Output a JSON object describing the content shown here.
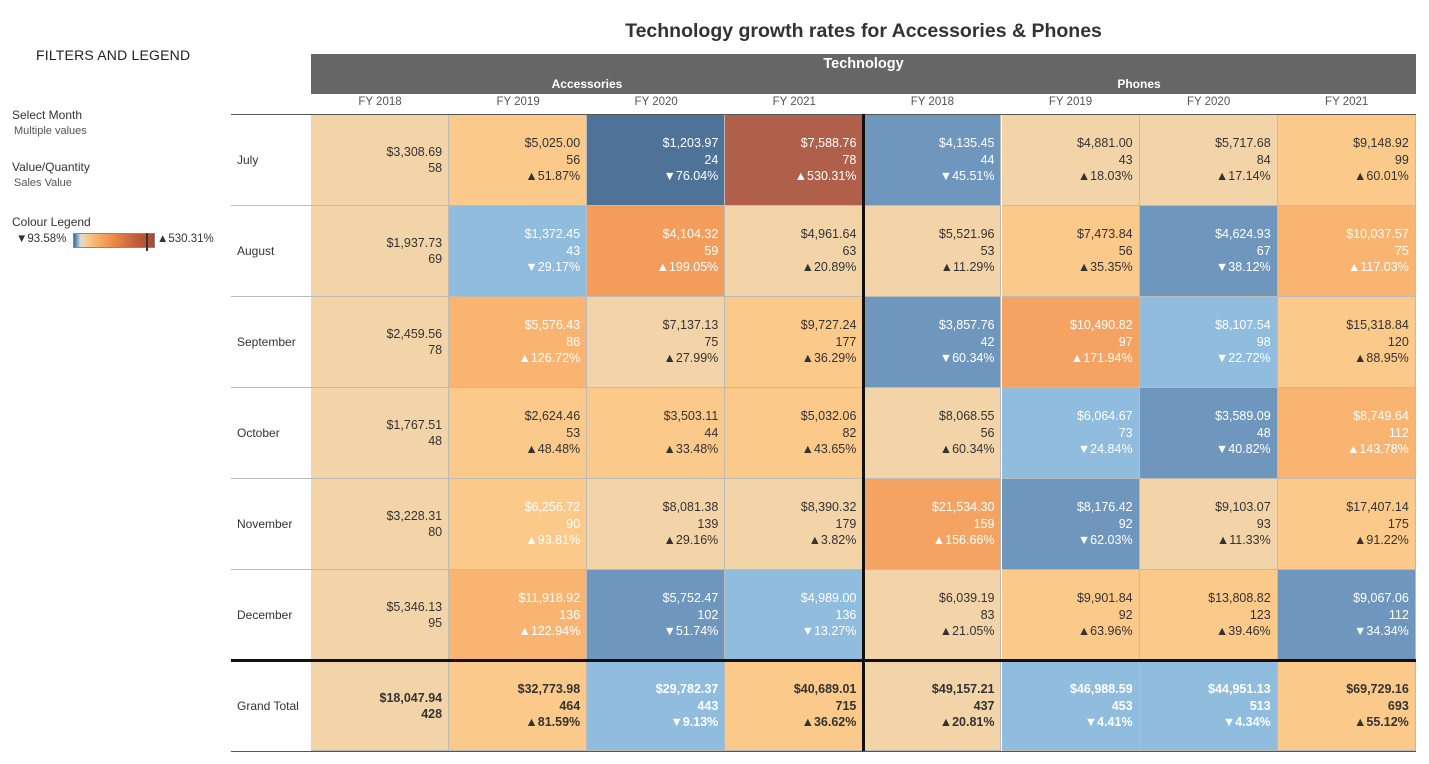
{
  "filters_panel": {
    "heading": "FILTERS AND LEGEND",
    "month_label": "Select Month",
    "month_value": "Multiple values",
    "measure_label": "Value/Quantity",
    "measure_value": "Sales Value",
    "legend_label": "Colour Legend",
    "legend_min": "▼93.58%",
    "legend_max": "▲530.31%"
  },
  "chart_data": {
    "type": "table",
    "title": "Technology growth rates for Accessories & Phones",
    "category": "Technology",
    "subcategories": [
      "Accessories",
      "Phones"
    ],
    "years": [
      "FY 2018",
      "FY 2019",
      "FY 2020",
      "FY 2021"
    ],
    "columns": [
      {
        "sub": "Accessories",
        "year": "FY 2018"
      },
      {
        "sub": "Accessories",
        "year": "FY 2019"
      },
      {
        "sub": "Accessories",
        "year": "FY 2020"
      },
      {
        "sub": "Accessories",
        "year": "FY 2021"
      },
      {
        "sub": "Phones",
        "year": "FY 2018"
      },
      {
        "sub": "Phones",
        "year": "FY 2019"
      },
      {
        "sub": "Phones",
        "year": "FY 2020"
      },
      {
        "sub": "Phones",
        "year": "FY 2021"
      }
    ],
    "rows": [
      {
        "label": "July",
        "cells": [
          {
            "value": "$3,308.69",
            "qty": "58",
            "growth": "",
            "color": "#f3d4a8",
            "text": "#333"
          },
          {
            "value": "$5,025.00",
            "qty": "56",
            "growth": "▲51.87%",
            "color": "#fbc98a",
            "text": "#333"
          },
          {
            "value": "$1,203.97",
            "qty": "24",
            "growth": "▼76.04%",
            "color": "#4f7298",
            "text": "#fff"
          },
          {
            "value": "$7,588.76",
            "qty": "78",
            "growth": "▲530.31%",
            "color": "#b0604a",
            "text": "#fff"
          },
          {
            "value": "$4,135.45",
            "qty": "44",
            "growth": "▼45.51%",
            "color": "#6f97be",
            "text": "#fff"
          },
          {
            "value": "$4,881.00",
            "qty": "43",
            "growth": "▲18.03%",
            "color": "#f3d4a8",
            "text": "#333"
          },
          {
            "value": "$5,717.68",
            "qty": "84",
            "growth": "▲17.14%",
            "color": "#f3d4a8",
            "text": "#333"
          },
          {
            "value": "$9,148.92",
            "qty": "99",
            "growth": "▲60.01%",
            "color": "#fbc98a",
            "text": "#333"
          }
        ]
      },
      {
        "label": "August",
        "cells": [
          {
            "value": "$1,937.73",
            "qty": "69",
            "growth": "",
            "color": "#f3d4a8",
            "text": "#333"
          },
          {
            "value": "$1,372.45",
            "qty": "43",
            "growth": "▼29.17%",
            "color": "#90bcde",
            "text": "#fff"
          },
          {
            "value": "$4,104.32",
            "qty": "59",
            "growth": "▲199.05%",
            "color": "#f49c5a",
            "text": "#fff"
          },
          {
            "value": "$4,961.64",
            "qty": "63",
            "growth": "▲20.89%",
            "color": "#f3d4a8",
            "text": "#333"
          },
          {
            "value": "$5,521.96",
            "qty": "53",
            "growth": "▲11.29%",
            "color": "#f3d4a8",
            "text": "#333"
          },
          {
            "value": "$7,473.84",
            "qty": "56",
            "growth": "▲35.35%",
            "color": "#fbc98a",
            "text": "#333"
          },
          {
            "value": "$4,624.93",
            "qty": "67",
            "growth": "▼38.12%",
            "color": "#6f97be",
            "text": "#fff"
          },
          {
            "value": "$10,037.57",
            "qty": "75",
            "growth": "▲117.03%",
            "color": "#f8b470",
            "text": "#fff"
          }
        ]
      },
      {
        "label": "September",
        "cells": [
          {
            "value": "$2,459.56",
            "qty": "78",
            "growth": "",
            "color": "#f3d4a8",
            "text": "#333"
          },
          {
            "value": "$5,576.43",
            "qty": "86",
            "growth": "▲126.72%",
            "color": "#f8b470",
            "text": "#fff"
          },
          {
            "value": "$7,137.13",
            "qty": "75",
            "growth": "▲27.99%",
            "color": "#f3d4a8",
            "text": "#333"
          },
          {
            "value": "$9,727.24",
            "qty": "177",
            "growth": "▲36.29%",
            "color": "#fbc98a",
            "text": "#333"
          },
          {
            "value": "$3,857.76",
            "qty": "42",
            "growth": "▼60.34%",
            "color": "#6f97be",
            "text": "#fff"
          },
          {
            "value": "$10,490.82",
            "qty": "97",
            "growth": "▲171.94%",
            "color": "#f4a362",
            "text": "#fff"
          },
          {
            "value": "$8,107.54",
            "qty": "98",
            "growth": "▼22.72%",
            "color": "#90bcde",
            "text": "#fff"
          },
          {
            "value": "$15,318.84",
            "qty": "120",
            "growth": "▲88.95%",
            "color": "#fbc98a",
            "text": "#333"
          }
        ]
      },
      {
        "label": "October",
        "cells": [
          {
            "value": "$1,767.51",
            "qty": "48",
            "growth": "",
            "color": "#f3d4a8",
            "text": "#333"
          },
          {
            "value": "$2,624.46",
            "qty": "53",
            "growth": "▲48.48%",
            "color": "#fbc98a",
            "text": "#333"
          },
          {
            "value": "$3,503.11",
            "qty": "44",
            "growth": "▲33.48%",
            "color": "#fbc98a",
            "text": "#333"
          },
          {
            "value": "$5,032.06",
            "qty": "82",
            "growth": "▲43.65%",
            "color": "#fbc98a",
            "text": "#333"
          },
          {
            "value": "$8,068.55",
            "qty": "56",
            "growth": "▲60.34%",
            "color": "#f3d4a8",
            "text": "#333"
          },
          {
            "value": "$6,064.67",
            "qty": "73",
            "growth": "▼24.84%",
            "color": "#90bcde",
            "text": "#fff"
          },
          {
            "value": "$3,589.09",
            "qty": "48",
            "growth": "▼40.82%",
            "color": "#6f97be",
            "text": "#fff"
          },
          {
            "value": "$8,749.64",
            "qty": "112",
            "growth": "▲143.78%",
            "color": "#f8b470",
            "text": "#fff"
          }
        ]
      },
      {
        "label": "November",
        "cells": [
          {
            "value": "$3,228.31",
            "qty": "80",
            "growth": "",
            "color": "#f3d4a8",
            "text": "#333"
          },
          {
            "value": "$6,256.72",
            "qty": "90",
            "growth": "▲93.81%",
            "color": "#fbc98a",
            "text": "#fff"
          },
          {
            "value": "$8,081.38",
            "qty": "139",
            "growth": "▲29.16%",
            "color": "#f3d4a8",
            "text": "#333"
          },
          {
            "value": "$8,390.32",
            "qty": "179",
            "growth": "▲3.82%",
            "color": "#f3d4a8",
            "text": "#333"
          },
          {
            "value": "$21,534.30",
            "qty": "159",
            "growth": "▲156.66%",
            "color": "#f4a362",
            "text": "#fff"
          },
          {
            "value": "$8,176.42",
            "qty": "92",
            "growth": "▼62.03%",
            "color": "#6f97be",
            "text": "#fff"
          },
          {
            "value": "$9,103.07",
            "qty": "93",
            "growth": "▲11.33%",
            "color": "#f3d4a8",
            "text": "#333"
          },
          {
            "value": "$17,407.14",
            "qty": "175",
            "growth": "▲91.22%",
            "color": "#fbc98a",
            "text": "#333"
          }
        ]
      },
      {
        "label": "December",
        "cells": [
          {
            "value": "$5,346.13",
            "qty": "95",
            "growth": "",
            "color": "#f3d4a8",
            "text": "#333"
          },
          {
            "value": "$11,918.92",
            "qty": "136",
            "growth": "▲122.94%",
            "color": "#f8b470",
            "text": "#fff"
          },
          {
            "value": "$5,752.47",
            "qty": "102",
            "growth": "▼51.74%",
            "color": "#6f97be",
            "text": "#fff"
          },
          {
            "value": "$4,989.00",
            "qty": "136",
            "growth": "▼13.27%",
            "color": "#90bcde",
            "text": "#fff"
          },
          {
            "value": "$6,039.19",
            "qty": "83",
            "growth": "▲21.05%",
            "color": "#f3d4a8",
            "text": "#333"
          },
          {
            "value": "$9,901.84",
            "qty": "92",
            "growth": "▲63.96%",
            "color": "#fbc98a",
            "text": "#333"
          },
          {
            "value": "$13,808.82",
            "qty": "123",
            "growth": "▲39.46%",
            "color": "#fbc98a",
            "text": "#333"
          },
          {
            "value": "$9,067.06",
            "qty": "112",
            "growth": "▼34.34%",
            "color": "#6f97be",
            "text": "#fff"
          }
        ]
      }
    ],
    "grand_total": {
      "label": "Grand Total",
      "cells": [
        {
          "value": "$18,047.94",
          "qty": "428",
          "growth": "",
          "color": "#f3d4a8",
          "text": "#333"
        },
        {
          "value": "$32,773.98",
          "qty": "464",
          "growth": "▲81.59%",
          "color": "#fbc98a",
          "text": "#333"
        },
        {
          "value": "$29,782.37",
          "qty": "443",
          "growth": "▼9.13%",
          "color": "#90bcde",
          "text": "#fff"
        },
        {
          "value": "$40,689.01",
          "qty": "715",
          "growth": "▲36.62%",
          "color": "#fbc98a",
          "text": "#333"
        },
        {
          "value": "$49,157.21",
          "qty": "437",
          "growth": "▲20.81%",
          "color": "#f3d4a8",
          "text": "#333"
        },
        {
          "value": "$46,988.59",
          "qty": "453",
          "growth": "▼4.41%",
          "color": "#90bcde",
          "text": "#fff"
        },
        {
          "value": "$44,951.13",
          "qty": "513",
          "growth": "▼4.34%",
          "color": "#90bcde",
          "text": "#fff"
        },
        {
          "value": "$69,729.16",
          "qty": "693",
          "growth": "▲55.12%",
          "color": "#fbc98a",
          "text": "#333"
        }
      ]
    }
  }
}
